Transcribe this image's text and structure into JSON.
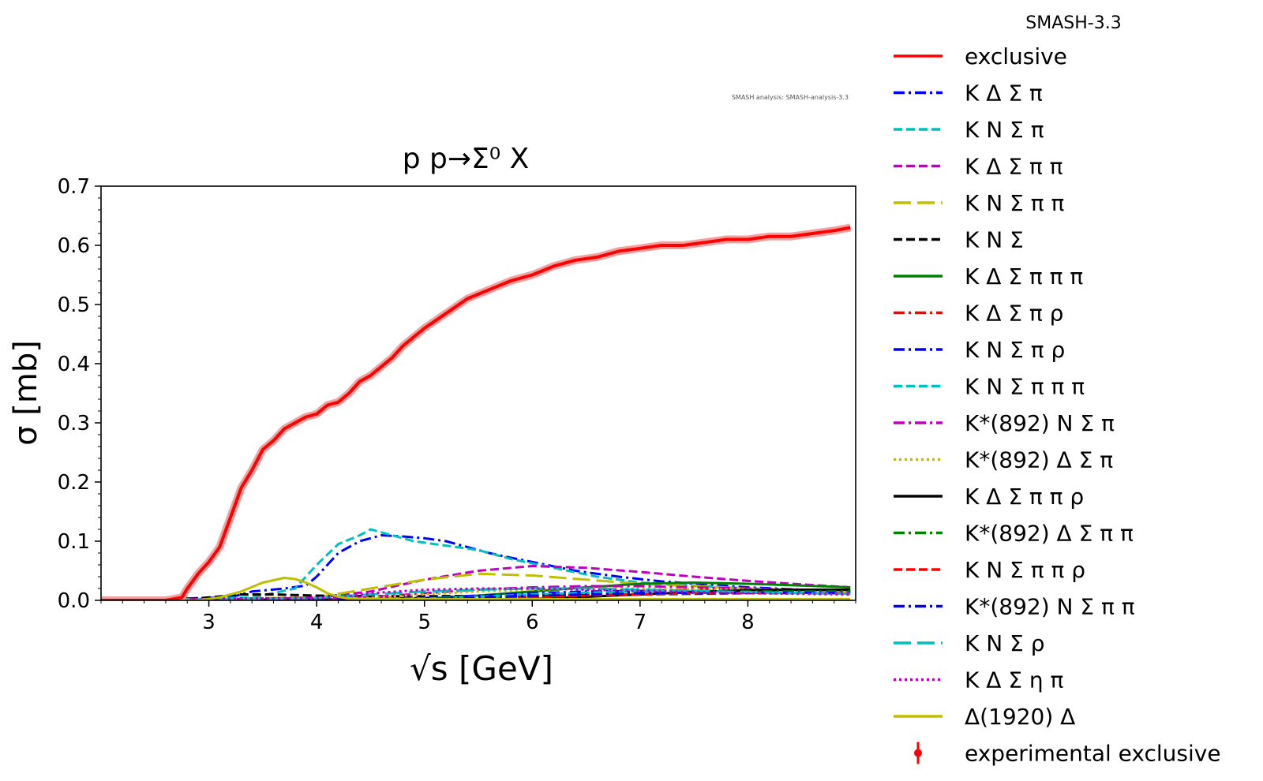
{
  "chart_data": {
    "type": "line",
    "title": "p p→Σ⁰ X",
    "xlabel": "√s [GeV]",
    "ylabel": "σ [mb]",
    "xlim": [
      2.0,
      9.0
    ],
    "ylim": [
      0.0,
      0.7
    ],
    "xticks": [
      "3",
      "4",
      "5",
      "6",
      "7",
      "8"
    ],
    "yticks": [
      "0.0",
      "0.1",
      "0.2",
      "0.3",
      "0.4",
      "0.5",
      "0.6",
      "0.7"
    ],
    "watermark": "SMASH analysis: SMASH-analysis-3.3",
    "legend_title": "SMASH-3.3",
    "legend_position": "outside right",
    "grid": false,
    "series": [
      {
        "name": "exclusive",
        "color": "#ff0000",
        "dash": "solid",
        "x": [
          2.0,
          2.6,
          2.75,
          2.8,
          2.9,
          3.0,
          3.1,
          3.2,
          3.3,
          3.4,
          3.5,
          3.6,
          3.7,
          3.8,
          3.9,
          4.0,
          4.1,
          4.2,
          4.3,
          4.4,
          4.5,
          4.6,
          4.7,
          4.8,
          4.9,
          5.0,
          5.2,
          5.4,
          5.6,
          5.8,
          6.0,
          6.2,
          6.4,
          6.6,
          6.8,
          7.0,
          7.2,
          7.4,
          7.6,
          7.8,
          8.0,
          8.2,
          8.4,
          8.6,
          8.8,
          8.95
        ],
        "y": [
          0.0,
          0.0,
          0.005,
          0.02,
          0.045,
          0.065,
          0.09,
          0.14,
          0.19,
          0.22,
          0.255,
          0.27,
          0.29,
          0.3,
          0.31,
          0.315,
          0.33,
          0.335,
          0.35,
          0.37,
          0.38,
          0.395,
          0.41,
          0.43,
          0.445,
          0.46,
          0.485,
          0.51,
          0.525,
          0.54,
          0.55,
          0.565,
          0.575,
          0.58,
          0.59,
          0.595,
          0.6,
          0.6,
          0.605,
          0.61,
          0.61,
          0.615,
          0.615,
          0.62,
          0.625,
          0.63
        ]
      },
      {
        "name": "K Δ Σ π",
        "color": "#0000ff",
        "dash": "dashdot",
        "x": [
          2.0,
          3.2,
          3.4,
          3.7,
          3.9,
          4.0,
          4.2,
          4.4,
          4.6,
          4.8,
          5.0,
          5.2,
          5.4,
          5.6,
          5.8,
          6.0,
          6.4,
          6.8,
          7.2,
          7.6,
          8.0,
          8.5,
          8.95
        ],
        "y": [
          0.0,
          0.005,
          0.015,
          0.02,
          0.025,
          0.04,
          0.08,
          0.1,
          0.11,
          0.108,
          0.105,
          0.1,
          0.09,
          0.08,
          0.072,
          0.065,
          0.05,
          0.04,
          0.032,
          0.027,
          0.022,
          0.018,
          0.015
        ]
      },
      {
        "name": "K N Σ π",
        "color": "#00bfbf",
        "dash": "dashed",
        "x": [
          2.0,
          3.4,
          3.8,
          4.0,
          4.2,
          4.4,
          4.5,
          4.7,
          4.9,
          5.1,
          5.3,
          5.5,
          5.8,
          6.2,
          6.6,
          7.0,
          7.5,
          8.0,
          8.5,
          8.95
        ],
        "y": [
          0.0,
          0.005,
          0.02,
          0.06,
          0.095,
          0.11,
          0.12,
          0.11,
          0.1,
          0.095,
          0.09,
          0.085,
          0.07,
          0.055,
          0.04,
          0.03,
          0.025,
          0.02,
          0.017,
          0.015
        ]
      },
      {
        "name": "K Δ Σ π π",
        "color": "#bf00bf",
        "dash": "dashed",
        "x": [
          2.0,
          4.0,
          4.5,
          5.0,
          5.5,
          6.0,
          6.5,
          7.0,
          7.5,
          8.0,
          8.5,
          8.95
        ],
        "y": [
          0.0,
          0.005,
          0.015,
          0.035,
          0.05,
          0.058,
          0.055,
          0.048,
          0.04,
          0.033,
          0.027,
          0.022
        ]
      },
      {
        "name": "K N Σ π π",
        "color": "#bfbf00",
        "dash": "longdash",
        "x": [
          2.0,
          4.0,
          4.5,
          5.0,
          5.5,
          6.0,
          6.5,
          7.0,
          7.5,
          8.0,
          8.5,
          8.95
        ],
        "y": [
          0.0,
          0.005,
          0.02,
          0.035,
          0.045,
          0.042,
          0.035,
          0.028,
          0.024,
          0.02,
          0.017,
          0.015
        ]
      },
      {
        "name": "K N Σ",
        "color": "#000000",
        "dash": "dashed",
        "x": [
          2.0,
          2.7,
          3.0,
          3.3,
          3.6,
          4.0,
          4.5,
          5.0,
          6.0,
          7.0,
          8.0,
          8.95
        ],
        "y": [
          0.0,
          0.001,
          0.005,
          0.01,
          0.01,
          0.008,
          0.007,
          0.007,
          0.008,
          0.01,
          0.012,
          0.012
        ]
      },
      {
        "name": "K Δ Σ π π π",
        "color": "#008000",
        "dash": "solid",
        "x": [
          2.0,
          5.0,
          5.5,
          6.0,
          6.5,
          7.0,
          7.5,
          8.0,
          8.5,
          8.95
        ],
        "y": [
          0.0,
          0.003,
          0.008,
          0.015,
          0.022,
          0.028,
          0.03,
          0.028,
          0.025,
          0.022
        ]
      },
      {
        "name": "K Δ Σ π ρ",
        "color": "#ff0000",
        "dash": "dashdot",
        "x": [
          2.0,
          5.5,
          6.0,
          6.5,
          7.0,
          7.5,
          8.0,
          8.5,
          8.95
        ],
        "y": [
          0.0,
          0.003,
          0.008,
          0.012,
          0.016,
          0.018,
          0.018,
          0.017,
          0.016
        ]
      },
      {
        "name": "K N Σ π ρ",
        "color": "#0000ff",
        "dash": "dashdot",
        "x": [
          2.0,
          5.0,
          5.5,
          6.0,
          6.5,
          7.0,
          7.5,
          8.0,
          8.5,
          8.95
        ],
        "y": [
          0.0,
          0.004,
          0.008,
          0.012,
          0.015,
          0.016,
          0.016,
          0.015,
          0.014,
          0.013
        ]
      },
      {
        "name": "K N Σ π π π",
        "color": "#00bfbf",
        "dash": "dashed",
        "x": [
          2.0,
          5.0,
          5.5,
          6.0,
          6.5,
          7.0,
          7.5,
          8.0,
          8.5,
          8.95
        ],
        "y": [
          0.0,
          0.003,
          0.006,
          0.01,
          0.013,
          0.015,
          0.016,
          0.016,
          0.015,
          0.015
        ]
      },
      {
        "name": "K*(892) N Σ π",
        "color": "#bf00bf",
        "dash": "dashdot",
        "x": [
          2.0,
          4.5,
          5.0,
          5.5,
          6.0,
          6.5,
          7.0,
          7.5,
          8.0,
          8.5,
          8.95
        ],
        "y": [
          0.0,
          0.005,
          0.012,
          0.018,
          0.022,
          0.024,
          0.024,
          0.022,
          0.02,
          0.018,
          0.016
        ]
      },
      {
        "name": "K*(892) Δ Σ π",
        "color": "#bfbf00",
        "dash": "dotted",
        "x": [
          2.0,
          4.5,
          5.0,
          5.5,
          6.0,
          6.5,
          7.0,
          7.5,
          8.0,
          8.5,
          8.95
        ],
        "y": [
          0.0,
          0.004,
          0.01,
          0.015,
          0.018,
          0.02,
          0.02,
          0.019,
          0.018,
          0.016,
          0.015
        ]
      },
      {
        "name": "K Δ Σ π π ρ",
        "color": "#000000",
        "dash": "solid",
        "x": [
          2.0,
          6.0,
          6.5,
          7.0,
          7.5,
          8.0,
          8.5,
          8.95
        ],
        "y": [
          0.0,
          0.002,
          0.006,
          0.01,
          0.014,
          0.017,
          0.018,
          0.018
        ]
      },
      {
        "name": "K*(892) Δ Σ π π",
        "color": "#008000",
        "dash": "dashdot",
        "x": [
          2.0,
          5.5,
          6.0,
          6.5,
          7.0,
          7.5,
          8.0,
          8.5,
          8.95
        ],
        "y": [
          0.0,
          0.002,
          0.005,
          0.009,
          0.012,
          0.014,
          0.015,
          0.015,
          0.015
        ]
      },
      {
        "name": "K N Σ π π ρ",
        "color": "#ff0000",
        "dash": "dashed",
        "x": [
          2.0,
          5.5,
          6.0,
          6.5,
          7.0,
          7.5,
          8.0,
          8.5,
          8.95
        ],
        "y": [
          0.0,
          0.002,
          0.005,
          0.008,
          0.01,
          0.012,
          0.012,
          0.012,
          0.012
        ]
      },
      {
        "name": "K*(892) N Σ π π",
        "color": "#0000ff",
        "dash": "dashdot",
        "x": [
          2.0,
          5.0,
          5.5,
          6.0,
          6.5,
          7.0,
          7.5,
          8.0,
          8.5,
          8.95
        ],
        "y": [
          0.0,
          0.002,
          0.005,
          0.008,
          0.01,
          0.012,
          0.013,
          0.013,
          0.013,
          0.012
        ]
      },
      {
        "name": "K N Σ ρ",
        "color": "#00bfbf",
        "dash": "longdash",
        "x": [
          2.0,
          4.0,
          4.5,
          5.0,
          5.5,
          6.0,
          6.5,
          7.0,
          7.5,
          8.0,
          8.5,
          8.95
        ],
        "y": [
          0.0,
          0.004,
          0.01,
          0.015,
          0.018,
          0.02,
          0.02,
          0.018,
          0.016,
          0.014,
          0.012,
          0.011
        ]
      },
      {
        "name": "K Δ Σ η π",
        "color": "#bf00bf",
        "dash": "dotted",
        "x": [
          2.0,
          4.2,
          4.5,
          5.0,
          5.5,
          6.0,
          6.5,
          7.0,
          7.5,
          8.0,
          8.5,
          8.95
        ],
        "y": [
          0.0,
          0.005,
          0.012,
          0.018,
          0.02,
          0.02,
          0.018,
          0.016,
          0.014,
          0.012,
          0.011,
          0.01
        ]
      },
      {
        "name": "Δ(1920) Δ",
        "color": "#bfbf00",
        "dash": "solid",
        "x": [
          2.0,
          2.9,
          3.1,
          3.3,
          3.5,
          3.7,
          3.8,
          3.9,
          4.0,
          4.1,
          4.2,
          4.3,
          4.6,
          5.0,
          6.0,
          7.0,
          8.0,
          8.95
        ],
        "y": [
          0.0,
          0.0,
          0.005,
          0.015,
          0.03,
          0.038,
          0.036,
          0.03,
          0.022,
          0.012,
          0.006,
          0.003,
          0.002,
          0.002,
          0.002,
          0.002,
          0.002,
          0.002
        ]
      }
    ],
    "extra_legend": [
      {
        "name": "experimental exclusive",
        "color": "#ff0000",
        "marker": "errorbar-point"
      }
    ]
  }
}
